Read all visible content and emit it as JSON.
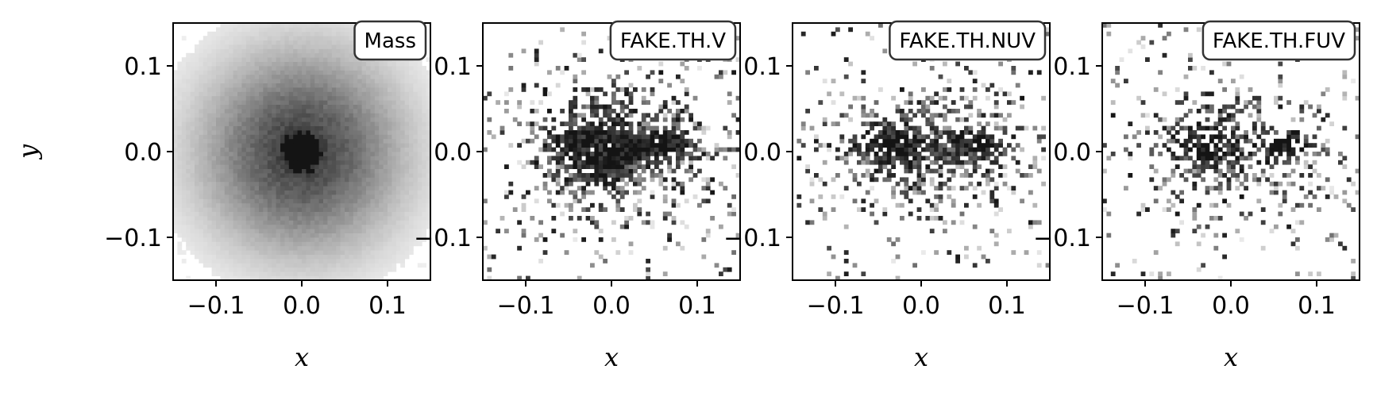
{
  "chart_data": [
    {
      "type": "heatmap",
      "title": "Mass",
      "xlabel": "x",
      "ylabel": "y",
      "xlim": [
        -0.15,
        0.15
      ],
      "ylim": [
        -0.15,
        0.15
      ],
      "xticks": [
        -0.1,
        0.0,
        0.1
      ],
      "yticks": [
        -0.1,
        0.0,
        0.1
      ],
      "xtick_labels": [
        "−0.1",
        "0.0",
        "0.1"
      ],
      "ytick_labels": [
        "−0.1",
        "0.0",
        "0.1"
      ],
      "colormap": "greys",
      "peak": [
        0.0,
        0.0
      ]
    },
    {
      "type": "heatmap",
      "title": "FAKE.TH.V",
      "xlabel": "x",
      "ylabel": "",
      "xlim": [
        -0.15,
        0.15
      ],
      "ylim": [
        -0.15,
        0.15
      ],
      "xticks": [
        -0.1,
        0.0,
        0.1
      ],
      "yticks": [
        -0.1,
        0.0,
        0.1
      ],
      "xtick_labels": [
        "−0.1",
        "0.0",
        "0.1"
      ],
      "ytick_labels": [
        "−0.1",
        "0.0",
        "0.1"
      ],
      "colormap": "greys",
      "peak": [
        0.08,
        0.0
      ]
    },
    {
      "type": "heatmap",
      "title": "FAKE.TH.NUV",
      "xlabel": "x",
      "ylabel": "",
      "xlim": [
        -0.15,
        0.15
      ],
      "ylim": [
        -0.15,
        0.15
      ],
      "xticks": [
        -0.1,
        0.0,
        0.1
      ],
      "yticks": [
        -0.1,
        0.0,
        0.1
      ],
      "xtick_labels": [
        "−0.1",
        "0.0",
        "0.1"
      ],
      "ytick_labels": [
        "−0.1",
        "0.0",
        "0.1"
      ],
      "colormap": "greys",
      "peak": [
        0.08,
        0.01
      ]
    },
    {
      "type": "heatmap",
      "title": "FAKE.TH.FUV",
      "xlabel": "x",
      "ylabel": "",
      "xlim": [
        -0.15,
        0.15
      ],
      "ylim": [
        -0.15,
        0.15
      ],
      "xticks": [
        -0.1,
        0.0,
        0.1
      ],
      "yticks": [
        -0.1,
        0.0,
        0.1
      ],
      "xtick_labels": [
        "−0.1",
        "0.0",
        "0.1"
      ],
      "ytick_labels": [
        "−0.1",
        "0.0",
        "0.1"
      ],
      "colormap": "greys",
      "peak": [
        0.09,
        0.01
      ]
    }
  ]
}
